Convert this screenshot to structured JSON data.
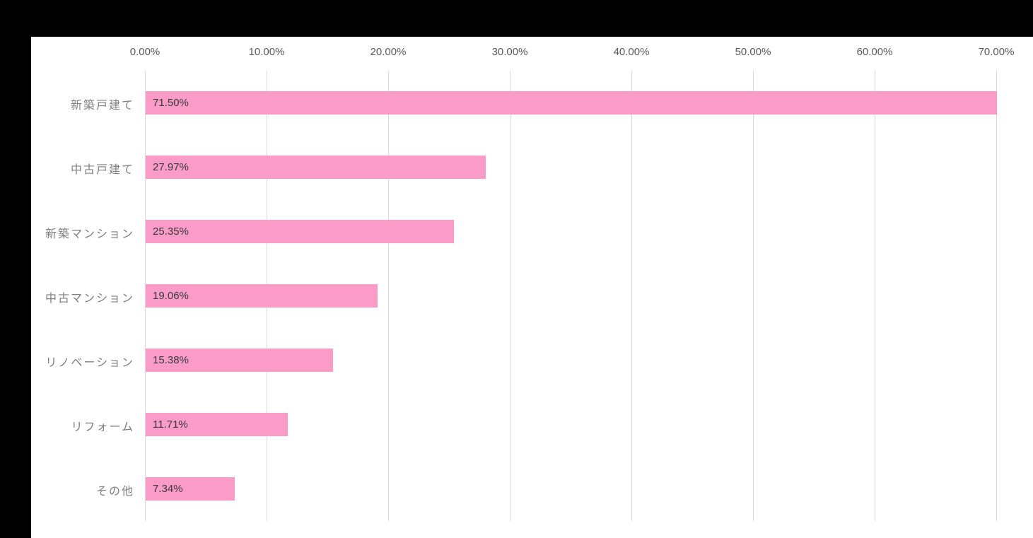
{
  "window": {
    "background_color": "#000000",
    "panel_color": "#ffffff"
  },
  "chart_data": {
    "type": "bar",
    "orientation": "horizontal",
    "title": "",
    "xlabel": "",
    "ylabel": "",
    "categories": [
      "新築戸建て",
      "中古戸建て",
      "新築マンション",
      "中古マンション",
      "リノベーション",
      "リフォーム",
      "その他"
    ],
    "values": [
      71.5,
      27.97,
      25.35,
      19.06,
      15.38,
      11.71,
      7.34
    ],
    "value_labels": [
      "71.50%",
      "27.97%",
      "25.35%",
      "19.06%",
      "15.38%",
      "11.71%",
      "7.34%"
    ],
    "x_ticks": [
      "0.00%",
      "10.00%",
      "20.00%",
      "30.00%",
      "40.00%",
      "50.00%",
      "60.00%",
      "70.00%"
    ],
    "x_tick_values": [
      0,
      10,
      20,
      30,
      40,
      50,
      60,
      70
    ],
    "xlim": [
      0,
      70
    ],
    "grid": "vertical",
    "legend": "none",
    "bar_color": "#fa9bc8",
    "gridline_color": "#d9d9d9",
    "axis_label_color": "#595959",
    "category_label_color": "#7f7f7f",
    "value_label_color": "#3a3a3a"
  }
}
